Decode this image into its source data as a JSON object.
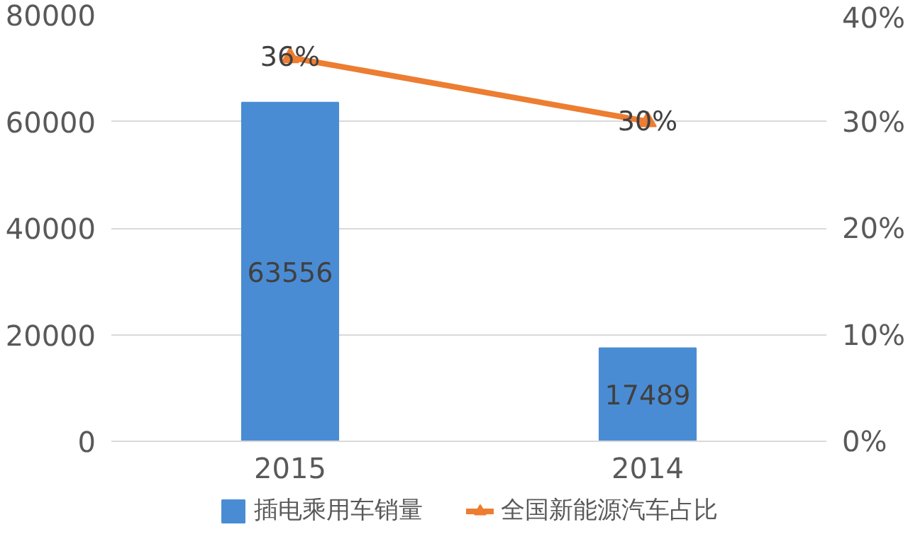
{
  "chart_data": {
    "type": "bar",
    "categories": [
      "2015",
      "2014"
    ],
    "series": [
      {
        "name": "插电乘用车销量",
        "color": "#4a8cd4",
        "values": [
          63556,
          17489
        ],
        "value_labels": [
          "63556",
          "17489"
        ]
      },
      {
        "name": "全国新能源汽车占比",
        "type": "line",
        "axis": "y2",
        "color": "#ed7d31",
        "values": [
          36,
          30
        ],
        "value_labels": [
          "36%",
          "30%"
        ],
        "marker": "triangle"
      }
    ],
    "ylim": [
      0,
      80000
    ],
    "yticks": [
      0,
      20000,
      40000,
      60000,
      80000
    ],
    "y2lim": [
      0,
      40
    ],
    "y2ticks": [
      {
        "value": 0,
        "label": "0%"
      },
      {
        "value": 10,
        "label": "10%"
      },
      {
        "value": 20,
        "label": "20%"
      },
      {
        "value": 30,
        "label": "30%"
      },
      {
        "value": 40,
        "label": "40%"
      }
    ],
    "grid": "y",
    "legend": "bottom"
  }
}
